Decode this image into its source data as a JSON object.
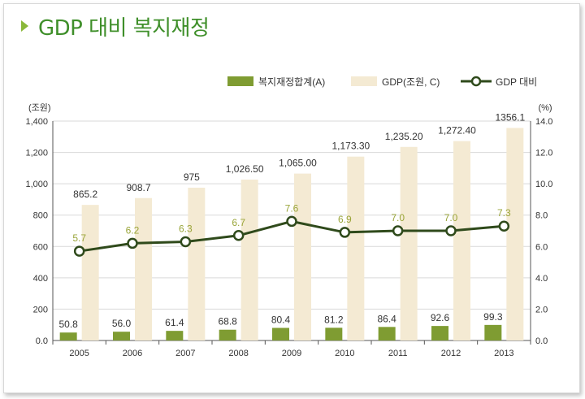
{
  "title": "GDP 대비 복지재정",
  "chart_data": {
    "type": "bar",
    "categories": [
      "2005",
      "2006",
      "2007",
      "2008",
      "2009",
      "2010",
      "2011",
      "2012",
      "2013"
    ],
    "series": [
      {
        "name": "복지재정합계(A)",
        "kind": "bar",
        "axis": "left",
        "values": [
          50.8,
          56.0,
          61.4,
          68.8,
          80.4,
          81.2,
          86.4,
          92.6,
          99.3
        ],
        "labels": [
          "50.8",
          "56.0",
          "61.4",
          "68.8",
          "80.4",
          "81.2",
          "86.4",
          "92.6",
          "99.3"
        ],
        "color": "#7f9c32"
      },
      {
        "name": "GDP(조원, C)",
        "kind": "bar",
        "axis": "left",
        "values": [
          865.2,
          908.7,
          975,
          1026.5,
          1065.0,
          1173.3,
          1235.2,
          1272.4,
          1356.1
        ],
        "labels": [
          "865.2",
          "908.7",
          "975",
          "1,026.50",
          "1,065.00",
          "1,173.30",
          "1,235.20",
          "1,272.40",
          "1356.1"
        ],
        "color": "#f4ead3"
      },
      {
        "name": "GDP 대비",
        "kind": "line",
        "axis": "right",
        "values": [
          5.7,
          6.2,
          6.3,
          6.7,
          7.6,
          6.9,
          7.0,
          7.0,
          7.3
        ],
        "labels": [
          "5.7",
          "6.2",
          "6.3",
          "6.7",
          "7.6",
          "6.9",
          "7.0",
          "7.0",
          "7.3"
        ],
        "color": "#2f4a1b",
        "label_color": "#9aa53a"
      }
    ],
    "ylabel_left": "(조원)",
    "ylabel_right": "(%)",
    "ylim_left": [
      0,
      1400
    ],
    "ylim_right": [
      0,
      14
    ],
    "yticks_left": [
      "0.0",
      "200",
      "400",
      "600",
      "800",
      "1,000",
      "1,200",
      "1,400"
    ],
    "yticks_right": [
      "0.0",
      "2.0",
      "4.0",
      "6.0",
      "8.0",
      "10.0",
      "12.0",
      "14.0"
    ],
    "grid": true,
    "legend_position": "top-right"
  }
}
